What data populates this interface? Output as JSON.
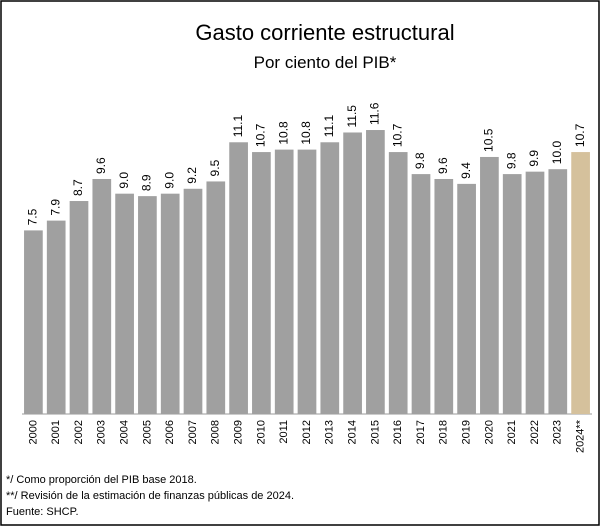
{
  "chart_data": {
    "type": "bar",
    "title": "Gasto corriente estructural",
    "subtitle": "Por ciento del PIB*",
    "categories": [
      "2000",
      "2001",
      "2002",
      "2003",
      "2004",
      "2005",
      "2006",
      "2007",
      "2008",
      "2009",
      "2010",
      "2011",
      "2012",
      "2013",
      "2014",
      "2015",
      "2016",
      "2017",
      "2018",
      "2019",
      "2020",
      "2021",
      "2022",
      "2023",
      "2024**"
    ],
    "values": [
      7.5,
      7.9,
      8.7,
      9.6,
      9.0,
      8.9,
      9.0,
      9.2,
      9.5,
      11.1,
      10.7,
      10.8,
      10.8,
      11.1,
      11.5,
      11.6,
      10.7,
      9.8,
      9.6,
      9.4,
      10.5,
      9.8,
      9.9,
      10.0,
      10.7
    ],
    "value_labels": [
      "7.5",
      "7.9",
      "8.7",
      "9.6",
      "9.0",
      "8.9",
      "9.0",
      "9.2",
      "9.5",
      "11.1",
      "10.7",
      "10.8",
      "10.8",
      "11.1",
      "11.5",
      "11.6",
      "10.7",
      "9.8",
      "9.6",
      "9.4",
      "10.5",
      "9.8",
      "9.9",
      "10.0",
      "10.7"
    ],
    "colors": [
      "#a0a0a0",
      "#a0a0a0",
      "#a0a0a0",
      "#a0a0a0",
      "#a0a0a0",
      "#a0a0a0",
      "#a0a0a0",
      "#a0a0a0",
      "#a0a0a0",
      "#a0a0a0",
      "#a0a0a0",
      "#a0a0a0",
      "#a0a0a0",
      "#a0a0a0",
      "#a0a0a0",
      "#a0a0a0",
      "#a0a0a0",
      "#a0a0a0",
      "#a0a0a0",
      "#a0a0a0",
      "#a0a0a0",
      "#a0a0a0",
      "#a0a0a0",
      "#a0a0a0",
      "#d5c19c"
    ],
    "ylim": [
      0,
      12.5
    ],
    "notes": [
      "*/ Como proporción del PIB base 2018.",
      "**/ Revisión de la estimación de finanzas públicas de 2024.",
      "Fuente: SHCP."
    ]
  }
}
